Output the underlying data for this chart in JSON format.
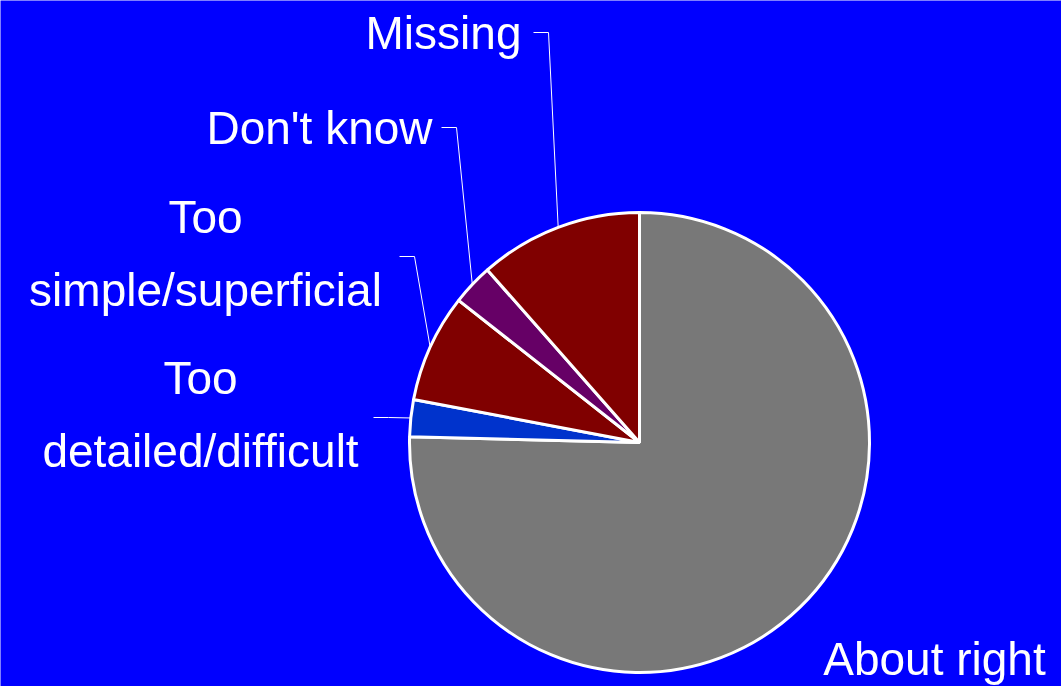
{
  "chart_data": {
    "type": "pie",
    "categories": [
      "About right",
      "Too detailed/difficult",
      "Too simple/superficial",
      "Don't know",
      "Missing"
    ],
    "values": [
      75.4,
      2.6,
      7.6,
      2.9,
      11.5
    ],
    "colors": [
      "#787878",
      "#0033cc",
      "#800000",
      "#660066",
      "#800000"
    ]
  }
}
